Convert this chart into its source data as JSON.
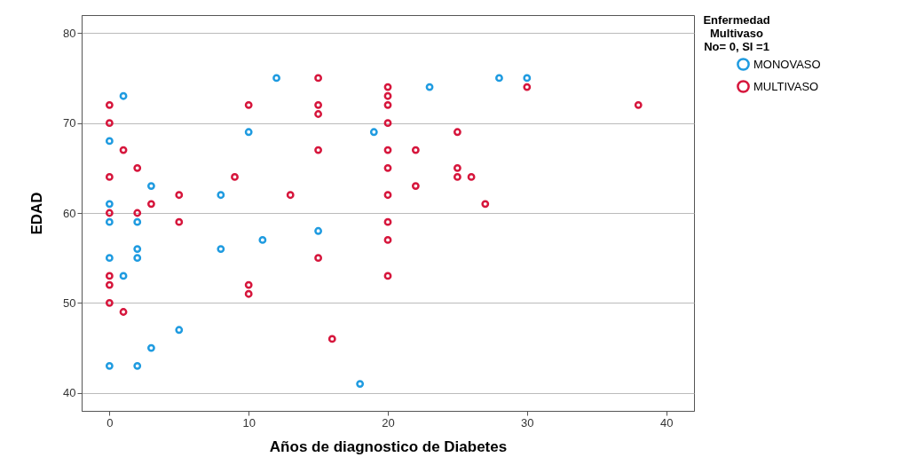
{
  "chart_data": {
    "type": "scatter",
    "xlabel": "Años de diagnostico de Diabetes",
    "ylabel": "EDAD",
    "legend_title": "Enfermedad\nMultivaso\nNo= 0, SI =1",
    "xlim": [
      -2,
      42
    ],
    "xticks": [
      0,
      10,
      20,
      30,
      40
    ],
    "ylim": [
      38,
      82
    ],
    "yticks": [
      40,
      50,
      60,
      70,
      80
    ],
    "grid": "y",
    "legend": "top right",
    "marker": "circle",
    "series": [
      {
        "name": "MONOVASO",
        "color": "#1f9be0",
        "x": [
          0,
          0,
          0,
          0,
          0,
          1,
          1,
          2,
          2,
          2,
          2,
          3,
          3,
          5,
          8,
          8,
          10,
          11,
          12,
          15,
          18,
          19,
          23,
          28,
          30
        ],
        "values": [
          68,
          61,
          59,
          55,
          43,
          73,
          53,
          59,
          56,
          55,
          43,
          63,
          45,
          47,
          62,
          56,
          69,
          57,
          75,
          58,
          41,
          69,
          74,
          75,
          75
        ]
      },
      {
        "name": "MULTIVASO",
        "color": "#d6163c",
        "x": [
          0,
          0,
          0,
          0,
          0,
          0,
          0,
          1,
          1,
          2,
          2,
          3,
          5,
          5,
          9,
          10,
          10,
          10,
          13,
          15,
          15,
          15,
          15,
          15,
          16,
          20,
          20,
          20,
          20,
          20,
          20,
          20,
          20,
          20,
          20,
          22,
          22,
          25,
          25,
          25,
          26,
          27,
          30,
          38
        ],
        "values": [
          72,
          70,
          64,
          60,
          53,
          52,
          50,
          67,
          49,
          65,
          60,
          61,
          62,
          59,
          64,
          72,
          52,
          51,
          62,
          75,
          72,
          71,
          67,
          55,
          46,
          74,
          73,
          72,
          70,
          67,
          65,
          62,
          59,
          57,
          53,
          67,
          63,
          69,
          65,
          64,
          64,
          61,
          74,
          72
        ]
      }
    ]
  }
}
